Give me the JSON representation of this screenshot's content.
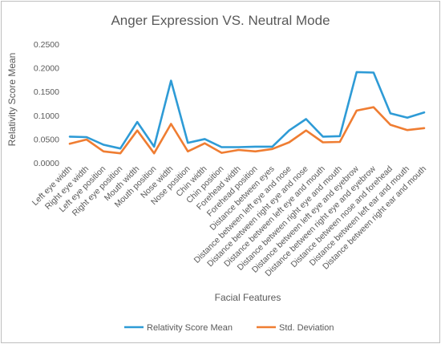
{
  "chart_data": {
    "type": "line",
    "title": "Anger Expression VS. Neutral Mode",
    "xlabel": "Facial Features",
    "ylabel": "Relativity Score Mean",
    "ylim": [
      0,
      0.25
    ],
    "yticks": [
      "0.0000",
      "0.0500",
      "0.1000",
      "0.1500",
      "0.2000",
      "0.2500"
    ],
    "grid": false,
    "legend_position": "bottom",
    "categories": [
      "Left eye width",
      "Right eye width",
      "Left eye position",
      "Right eye position",
      "Mouth width",
      "Mouth position",
      "Nose width",
      "Nose position",
      "Chin width",
      "Chin position",
      "Forehead width",
      "Forehead position",
      "Distance between eyes",
      "Distance between left eye and nose",
      "Distance between right eye and nose",
      "Distance between left eye and mouth",
      "Distance between right eye and mouth",
      "Distance between left eye and eyebrow",
      "Distance between right eye and eyebrow",
      "Distance between nose and forehead",
      "Distance between left ear and mouth",
      "Distance between right ear and mouth"
    ],
    "series": [
      {
        "name": "Relativity Score Mean",
        "color": "#2e9bd6",
        "values": [
          0.055,
          0.054,
          0.038,
          0.03,
          0.086,
          0.034,
          0.173,
          0.042,
          0.05,
          0.033,
          0.033,
          0.034,
          0.034,
          0.068,
          0.092,
          0.055,
          0.056,
          0.191,
          0.19,
          0.104,
          0.095,
          0.106
        ]
      },
      {
        "name": "Std. Deviation",
        "color": "#ef7d32",
        "values": [
          0.04,
          0.049,
          0.024,
          0.02,
          0.068,
          0.02,
          0.082,
          0.024,
          0.041,
          0.021,
          0.027,
          0.024,
          0.029,
          0.043,
          0.068,
          0.043,
          0.044,
          0.11,
          0.117,
          0.08,
          0.069,
          0.073
        ]
      }
    ]
  }
}
